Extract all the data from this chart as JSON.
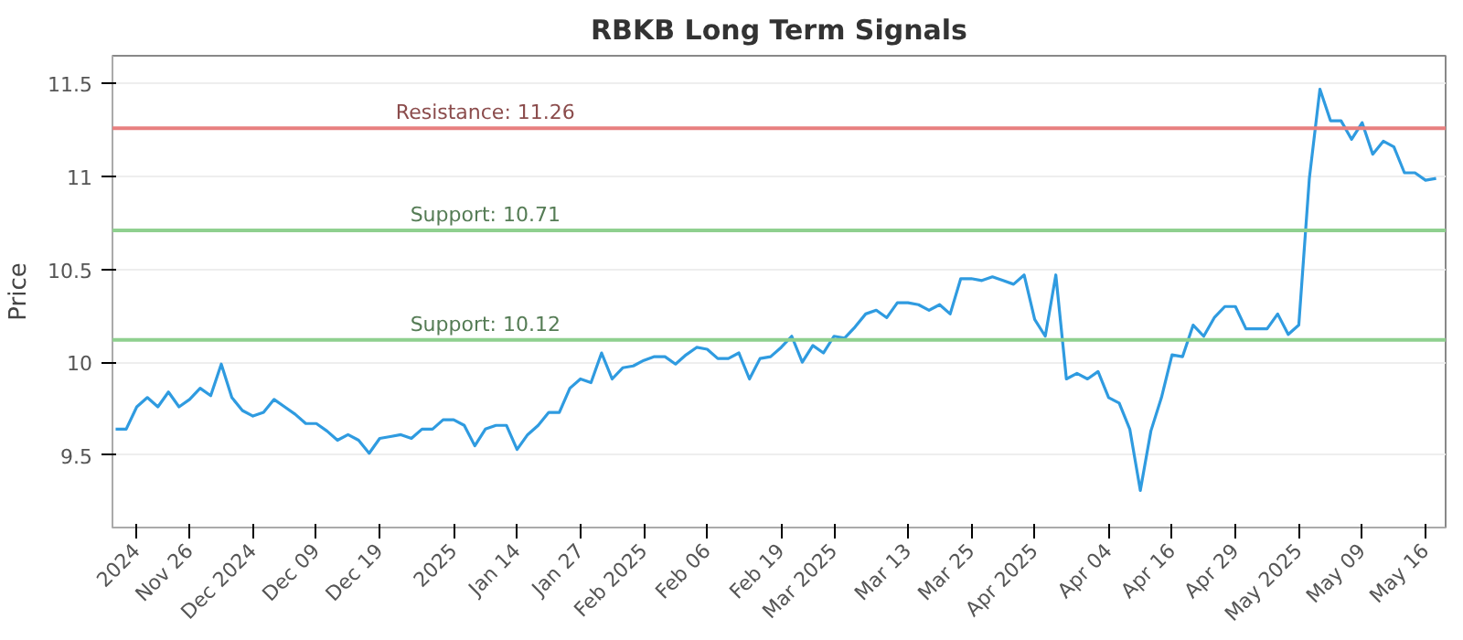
{
  "chart_data": {
    "type": "line",
    "title": "RBKB Long Term Signals",
    "ylabel": "Price",
    "categories": [
      null,
      null,
      "2024",
      null,
      null,
      null,
      null,
      "Nov 26",
      null,
      null,
      null,
      null,
      null,
      "Dec 2024",
      null,
      null,
      null,
      null,
      null,
      "Dec 09",
      null,
      null,
      null,
      null,
      null,
      "Dec 19",
      null,
      null,
      null,
      null,
      null,
      null,
      "2025",
      null,
      null,
      null,
      null,
      null,
      "Jan 14",
      null,
      null,
      null,
      null,
      null,
      "Jan 27",
      null,
      null,
      null,
      null,
      null,
      "Feb 2025",
      null,
      null,
      null,
      null,
      null,
      "Feb 06",
      null,
      null,
      null,
      null,
      null,
      null,
      "Feb 19",
      null,
      null,
      null,
      null,
      "Mar 2025",
      null,
      null,
      null,
      null,
      null,
      null,
      "Mar 13",
      null,
      null,
      null,
      null,
      null,
      "Mar 25",
      null,
      null,
      null,
      null,
      null,
      "Apr 2025",
      null,
      null,
      null,
      null,
      null,
      null,
      "Apr 04",
      null,
      null,
      null,
      null,
      null,
      "Apr 16",
      null,
      null,
      null,
      null,
      null,
      "Apr 29",
      null,
      null,
      null,
      null,
      null,
      "May 2025",
      null,
      null,
      null,
      null,
      null,
      "May 09",
      null,
      null,
      null,
      null,
      null,
      "May 16",
      null
    ],
    "series": [
      {
        "color": "#2f9be0",
        "values": [
          9.64,
          9.64,
          9.76,
          9.81,
          9.76,
          9.84,
          9.76,
          9.8,
          9.86,
          9.82,
          9.99,
          9.81,
          9.74,
          9.71,
          9.73,
          9.8,
          9.76,
          9.72,
          9.67,
          9.67,
          9.63,
          9.58,
          9.61,
          9.58,
          9.51,
          9.59,
          9.6,
          9.61,
          9.59,
          9.64,
          9.64,
          9.69,
          9.69,
          9.66,
          9.55,
          9.64,
          9.66,
          9.66,
          9.53,
          9.61,
          9.66,
          9.73,
          9.73,
          9.86,
          9.91,
          9.89,
          10.05,
          9.91,
          9.97,
          9.98,
          10.01,
          10.03,
          10.03,
          9.99,
          10.04,
          10.08,
          10.07,
          10.02,
          10.02,
          10.05,
          9.91,
          10.02,
          10.03,
          10.08,
          10.14,
          10.0,
          10.09,
          10.05,
          10.14,
          10.13,
          10.19,
          10.26,
          10.28,
          10.24,
          10.32,
          10.32,
          10.31,
          10.28,
          10.31,
          10.26,
          10.45,
          10.45,
          10.44,
          10.46,
          10.44,
          10.42,
          10.47,
          10.23,
          10.14,
          10.47,
          9.91,
          9.94,
          9.91,
          9.95,
          9.81,
          9.78,
          9.64,
          9.31,
          9.63,
          9.81,
          10.04,
          10.03,
          10.2,
          10.14,
          10.24,
          10.3,
          10.3,
          10.18,
          10.18,
          10.18,
          10.26,
          10.15,
          10.2,
          10.99,
          11.47,
          11.3,
          11.3,
          11.2,
          11.29,
          11.12,
          11.19,
          11.16,
          11.02,
          11.02,
          10.98,
          10.99
        ]
      }
    ],
    "ylim": [
      9.11,
      11.65
    ],
    "yticks": [
      9.5,
      10.0,
      10.5,
      11.0,
      11.5
    ],
    "grid": "y",
    "ref_lines": [
      {
        "axis": "y",
        "value": 11.26,
        "label": "Resistance: 11.26",
        "color": "#e88080"
      },
      {
        "axis": "y",
        "value": 10.71,
        "label": "Support: 10.71",
        "color": "#8fd08f"
      },
      {
        "axis": "y",
        "value": 10.12,
        "label": "Support: 10.12",
        "color": "#8fd08f"
      }
    ]
  }
}
